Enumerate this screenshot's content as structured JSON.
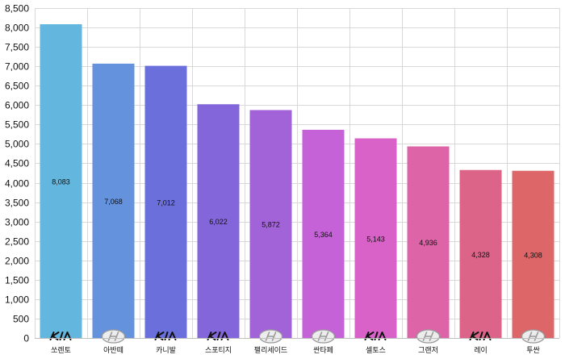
{
  "chart_data": {
    "type": "bar",
    "categories": [
      "쏘렌토",
      "아반떼",
      "카니발",
      "스포티지",
      "팰리세이드",
      "싼타페",
      "셀토스",
      "그랜저",
      "레이",
      "투싼"
    ],
    "values": [
      8083,
      7068,
      7012,
      6022,
      5872,
      5364,
      5143,
      4936,
      4328,
      4308
    ],
    "data_labels": [
      "8,083",
      "7,068",
      "7,012",
      "6,022",
      "5,872",
      "5,364",
      "5,143",
      "4,936",
      "4,328",
      "4,308"
    ],
    "category_logos": [
      "kia-logo",
      "hyundai-logo",
      "kia-logo",
      "kia-logo",
      "hyundai-logo",
      "hyundai-logo",
      "kia-logo",
      "hyundai-logo",
      "kia-logo",
      "hyundai-logo"
    ],
    "bar_colors": [
      "#63b6de",
      "#6592dc",
      "#6a6fdc",
      "#8367da",
      "#a263d8",
      "#c562d8",
      "#d862c7",
      "#dd64a6",
      "#dc6488",
      "#dd6669"
    ],
    "ylim": [
      0,
      8500
    ],
    "ytick_step": 500,
    "ytick_labels": [
      "0",
      "500",
      "1,000",
      "1,500",
      "2,000",
      "2,500",
      "3,000",
      "3,500",
      "4,000",
      "4,500",
      "5,000",
      "5,500",
      "6,000",
      "6,500",
      "7,000",
      "7,500",
      "8,000",
      "8,500"
    ],
    "grid": true,
    "legend": "none",
    "title": "",
    "xlabel": "",
    "ylabel": ""
  }
}
